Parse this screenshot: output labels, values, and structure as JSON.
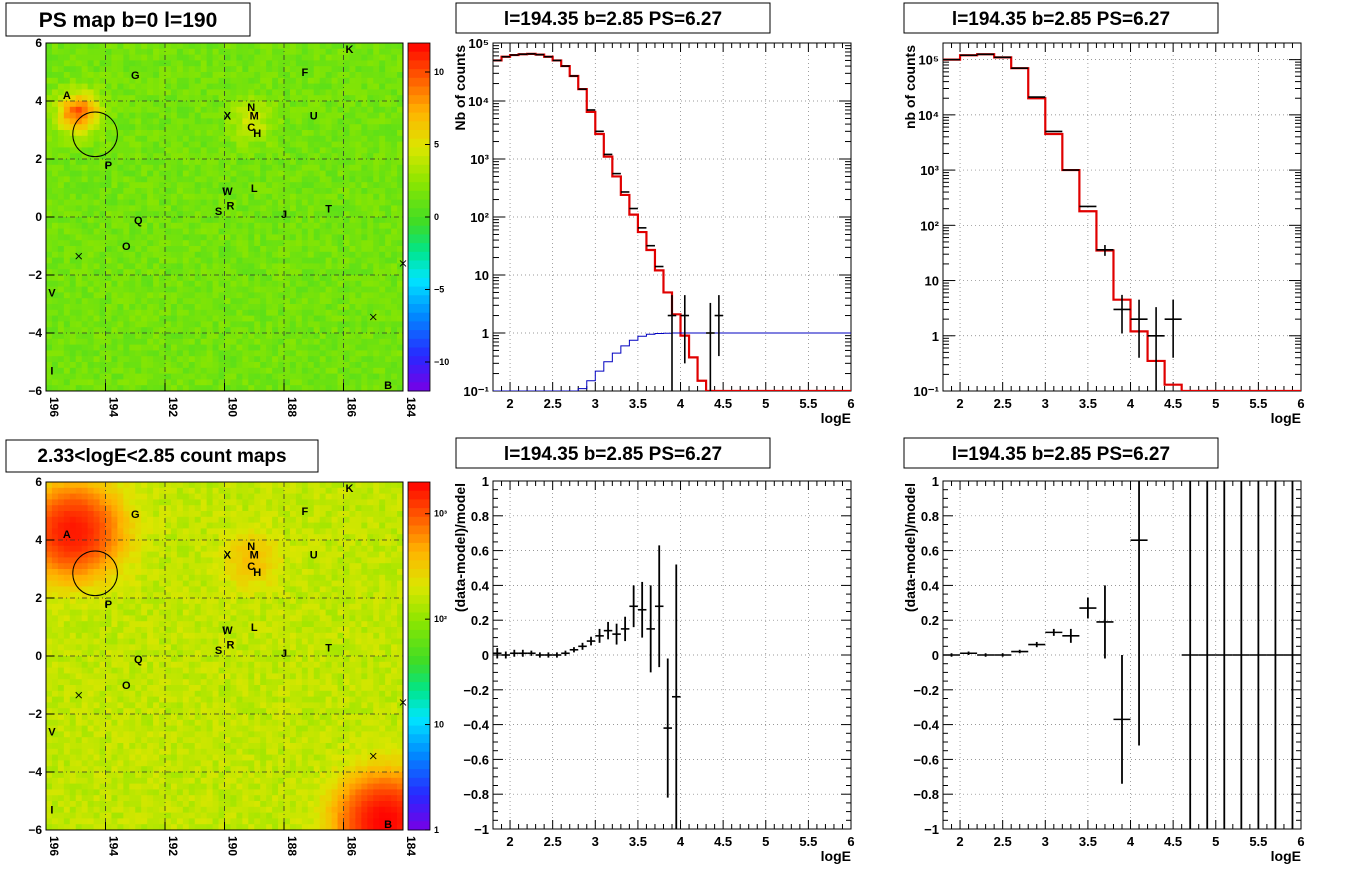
{
  "panels": {
    "map1": {
      "title": "PS map b=0 l=190",
      "xticks": [
        "196",
        "194",
        "192",
        "190",
        "188",
        "186",
        "184"
      ],
      "xticks_val": [
        196,
        194,
        192,
        190,
        188,
        186,
        184
      ],
      "yticks": [
        "−6",
        "−4",
        "−2",
        "0",
        "2",
        "4",
        "6"
      ],
      "yticks_val": [
        -6,
        -4,
        -2,
        0,
        2,
        4,
        6
      ],
      "xlim": [
        196,
        184
      ],
      "ylim": [
        -6,
        6
      ],
      "colorbar": {
        "scale": "linear",
        "range": [
          -12,
          12
        ],
        "ticks": [
          "−10",
          "−5",
          "0",
          "5",
          "10"
        ],
        "ticks_val": [
          -10,
          -5,
          0,
          5,
          10
        ]
      },
      "hotspots": [
        {
          "l": 194.9,
          "b": 3.6,
          "amp": 8
        },
        {
          "l": 189.1,
          "b": 3.3,
          "amp": 3
        }
      ],
      "background_value": 1.5
    },
    "map2": {
      "title": "2.33<logE<2.85 count maps",
      "xticks": [
        "196",
        "194",
        "192",
        "190",
        "188",
        "186",
        "184"
      ],
      "xticks_val": [
        196,
        194,
        192,
        190,
        188,
        186,
        184
      ],
      "yticks": [
        "−6",
        "−4",
        "−2",
        "0",
        "2",
        "4",
        "6"
      ],
      "yticks_val": [
        -6,
        -4,
        -2,
        0,
        2,
        4,
        6
      ],
      "xlim": [
        196,
        184
      ],
      "ylim": [
        -6,
        6
      ],
      "colorbar": {
        "scale": "log",
        "range": [
          1,
          2000
        ],
        "ticks": [
          "1",
          "10",
          "10²",
          "10³"
        ],
        "ticks_val": [
          1,
          10,
          100,
          1000
        ]
      },
      "background_value": 150,
      "hotspots": [
        {
          "l": 195.1,
          "b": 4.3,
          "amp": 1500,
          "width": 0.9
        },
        {
          "l": 184.6,
          "b": -5.7,
          "amp": 1800,
          "width": 0.9
        },
        {
          "l": 189.1,
          "b": 3.3,
          "amp": 220,
          "width": 0.6
        }
      ]
    },
    "spec1": {
      "title": "l=194.35 b=2.85 PS=6.27",
      "ylabel": "Nb of counts",
      "xlabel": "logE"
    },
    "spec2": {
      "title": "l=194.35 b=2.85 PS=6.27",
      "ylabel": "nb of counts",
      "xlabel": "logE"
    },
    "res1": {
      "title": "l=194.35 b=2.85 PS=6.27",
      "ylabel": "(data-model)/model",
      "xlabel": "logE"
    },
    "res2": {
      "title": "l=194.35 b=2.85 PS=6.27",
      "ylabel": "(data-model)/model",
      "xlabel": "logE"
    }
  },
  "sources": [
    {
      "name": "A",
      "l": 195.3,
      "b": 4.2
    },
    {
      "name": "G",
      "l": 193.0,
      "b": 4.9
    },
    {
      "name": "F",
      "l": 187.3,
      "b": 5.0
    },
    {
      "name": "K",
      "l": 185.8,
      "b": 5.8
    },
    {
      "name": "N",
      "l": 189.1,
      "b": 3.8
    },
    {
      "name": "X",
      "l": 189.9,
      "b": 3.5
    },
    {
      "name": "M",
      "l": 189.0,
      "b": 3.5
    },
    {
      "name": "C",
      "l": 189.1,
      "b": 3.1
    },
    {
      "name": "H",
      "l": 188.9,
      "b": 2.9
    },
    {
      "name": "U",
      "l": 187.0,
      "b": 3.5
    },
    {
      "name": "P",
      "l": 193.9,
      "b": 1.8
    },
    {
      "name": "W",
      "l": 189.9,
      "b": 0.9
    },
    {
      "name": "L",
      "l": 189.0,
      "b": 1.0
    },
    {
      "name": "R",
      "l": 189.8,
      "b": 0.4
    },
    {
      "name": "S",
      "l": 190.2,
      "b": 0.2
    },
    {
      "name": "J",
      "l": 188.0,
      "b": 0.1
    },
    {
      "name": "T",
      "l": 186.5,
      "b": 0.3
    },
    {
      "name": "Q",
      "l": 192.9,
      "b": -0.1
    },
    {
      "name": "O",
      "l": 193.3,
      "b": -1.0
    },
    {
      "name": "V",
      "l": 195.8,
      "b": -2.6
    },
    {
      "name": "I",
      "l": 195.8,
      "b": -5.3
    },
    {
      "name": "B",
      "l": 184.5,
      "b": -5.8
    }
  ],
  "crosses": [
    {
      "l": 194.9,
      "b": -1.35
    },
    {
      "l": 185.0,
      "b": -3.45
    },
    {
      "l": 184.0,
      "b": -1.6
    }
  ],
  "circle": {
    "l": 194.35,
    "b": 2.85,
    "r": 0.75
  },
  "chart_data": [
    {
      "type": "line",
      "panel": "spec1",
      "xlim": [
        1.8,
        6
      ],
      "ylim": [
        0.1,
        100000
      ],
      "yscale": "log",
      "xticks": [
        "2",
        "2.5",
        "3",
        "3.5",
        "4",
        "4.5",
        "5",
        "5.5",
        "6"
      ],
      "xticks_val": [
        2,
        2.5,
        3,
        3.5,
        4,
        4.5,
        5,
        5.5,
        6
      ],
      "yticks": [
        "10⁻¹",
        "1",
        "10",
        "10²",
        "10³",
        "10⁴",
        "10⁵"
      ],
      "yticks_val": [
        0.1,
        1,
        10,
        100,
        1000,
        10000,
        100000
      ],
      "bin_edges": [
        1.8,
        1.9,
        2.0,
        2.1,
        2.2,
        2.3,
        2.4,
        2.5,
        2.6,
        2.7,
        2.8,
        2.9,
        3.0,
        3.1,
        3.2,
        3.3,
        3.4,
        3.5,
        3.6,
        3.7,
        3.8,
        3.9,
        4.0,
        4.1,
        4.2,
        4.3,
        4.4,
        4.5,
        4.6,
        4.7,
        4.8,
        4.9,
        5.0,
        5.1,
        5.2,
        5.3,
        5.4,
        5.5,
        5.6,
        5.7,
        5.8,
        5.9,
        6.0
      ],
      "series": [
        {
          "values": [
            50000,
            58000,
            62000,
            64000,
            65000,
            63000,
            58000,
            50000,
            40000,
            27000,
            16000,
            6500,
            2700,
            1100,
            500,
            240,
            110,
            55,
            27,
            12,
            5,
            2.1,
            0.9,
            0.38,
            0.15,
            0.1,
            0.1,
            0.1,
            0.1,
            0.1,
            0.1,
            0.1,
            0.1,
            0.1,
            0.1,
            0.1,
            0.1,
            0.1,
            0.1,
            0.1,
            0.1,
            0.1
          ]
        },
        {
          "values": [
            0.1,
            0.1,
            0.1,
            0.1,
            0.1,
            0.1,
            0.1,
            0.1,
            0.1,
            0.1,
            0.11,
            0.15,
            0.22,
            0.32,
            0.45,
            0.6,
            0.75,
            0.88,
            0.95,
            0.98,
            0.99,
            1,
            1,
            1,
            1,
            1,
            1,
            1,
            1,
            1,
            1,
            1,
            1,
            1,
            1,
            1,
            1,
            1,
            1,
            1,
            1,
            1
          ]
        }
      ],
      "points": [
        {
          "x": 1.85,
          "y": 50000
        },
        {
          "x": 1.95,
          "y": 58000
        },
        {
          "x": 2.05,
          "y": 62000
        },
        {
          "x": 2.15,
          "y": 64000
        },
        {
          "x": 2.25,
          "y": 65000
        },
        {
          "x": 2.35,
          "y": 63000
        },
        {
          "x": 2.45,
          "y": 58000
        },
        {
          "x": 2.55,
          "y": 50000
        },
        {
          "x": 2.65,
          "y": 40000
        },
        {
          "x": 2.75,
          "y": 27000
        },
        {
          "x": 2.85,
          "y": 16000
        },
        {
          "x": 2.95,
          "y": 7000
        },
        {
          "x": 3.05,
          "y": 3000
        },
        {
          "x": 3.15,
          "y": 1200
        },
        {
          "x": 3.25,
          "y": 560
        },
        {
          "x": 3.35,
          "y": 270
        },
        {
          "x": 3.45,
          "y": 140
        },
        {
          "x": 3.55,
          "y": 65
        },
        {
          "x": 3.65,
          "y": 32
        },
        {
          "x": 3.75,
          "y": 14
        },
        {
          "x": 3.9,
          "y": 2,
          "ylo": 0.1,
          "yhi": 4.5
        },
        {
          "x": 4.05,
          "y": 2,
          "ylo": 0.3,
          "yhi": 4.5
        },
        {
          "x": 4.35,
          "y": 1,
          "ylo": 0.1,
          "yhi": 3.3
        },
        {
          "x": 4.45,
          "y": 2,
          "ylo": 0.4,
          "yhi": 4.5
        }
      ],
      "xlabel": "logE",
      "ylabel": "Nb of counts"
    },
    {
      "type": "line",
      "panel": "spec2",
      "xlim": [
        1.8,
        6
      ],
      "ylim": [
        0.1,
        200000
      ],
      "yscale": "log",
      "xticks": [
        "2",
        "2.5",
        "3",
        "3.5",
        "4",
        "4.5",
        "5",
        "5.5",
        "6"
      ],
      "xticks_val": [
        2,
        2.5,
        3,
        3.5,
        4,
        4.5,
        5,
        5.5,
        6
      ],
      "yticks": [
        "10⁻¹",
        "1",
        "10",
        "10²",
        "10³",
        "10⁴",
        "10⁵"
      ],
      "yticks_val": [
        0.1,
        1,
        10,
        100,
        1000,
        10000,
        100000
      ],
      "bin_edges": [
        1.8,
        2.0,
        2.2,
        2.4,
        2.6,
        2.8,
        3.0,
        3.2,
        3.4,
        3.6,
        3.8,
        4.0,
        4.2,
        4.4,
        4.6,
        4.8,
        5.0,
        5.2,
        5.4,
        5.6,
        5.8,
        6.0
      ],
      "series": [
        {
          "values": [
            100000,
            120000,
            125000,
            110000,
            70000,
            20000,
            4500,
            1000,
            180,
            35,
            4.5,
            1.2,
            0.35,
            0.13,
            0.1,
            0.1,
            0.1,
            0.1,
            0.1,
            0.1,
            0.1
          ]
        }
      ],
      "points": [
        {
          "x": 1.9,
          "y": 100000
        },
        {
          "x": 2.1,
          "y": 120000
        },
        {
          "x": 2.3,
          "y": 125000
        },
        {
          "x": 2.5,
          "y": 110000
        },
        {
          "x": 2.7,
          "y": 70000
        },
        {
          "x": 2.9,
          "y": 21000
        },
        {
          "x": 3.1,
          "y": 5000
        },
        {
          "x": 3.3,
          "y": 1000
        },
        {
          "x": 3.5,
          "y": 220
        },
        {
          "x": 3.7,
          "y": 36,
          "ylo": 28,
          "yhi": 44
        },
        {
          "x": 3.9,
          "y": 3,
          "ylo": 1.1,
          "yhi": 5.5
        },
        {
          "x": 4.1,
          "y": 2,
          "ylo": 0.4,
          "yhi": 4.5
        },
        {
          "x": 4.3,
          "y": 1,
          "ylo": 0.1,
          "yhi": 3.3
        },
        {
          "x": 4.5,
          "y": 2,
          "ylo": 0.4,
          "yhi": 4.5
        }
      ],
      "xlabel": "logE",
      "ylabel": "nb of counts"
    },
    {
      "type": "scatter",
      "panel": "res1",
      "xlim": [
        1.8,
        6
      ],
      "ylim": [
        -1,
        1
      ],
      "xticks": [
        "2",
        "2.5",
        "3",
        "3.5",
        "4",
        "4.5",
        "5",
        "5.5",
        "6"
      ],
      "xticks_val": [
        2,
        2.5,
        3,
        3.5,
        4,
        4.5,
        5,
        5.5,
        6
      ],
      "yticks": [
        "−1",
        "−0.8",
        "−0.6",
        "−0.4",
        "−0.2",
        "0",
        "0.2",
        "0.4",
        "0.6",
        "0.8",
        "1"
      ],
      "yticks_val": [
        -1,
        -0.8,
        -0.6,
        -0.4,
        -0.2,
        0,
        0.2,
        0.4,
        0.6,
        0.8,
        1
      ],
      "points": [
        {
          "x": 1.85,
          "y": 0.01,
          "e": 0.03
        },
        {
          "x": 1.95,
          "y": 0.0,
          "e": 0.02
        },
        {
          "x": 2.05,
          "y": 0.01,
          "e": 0.02
        },
        {
          "x": 2.15,
          "y": 0.01,
          "e": 0.02
        },
        {
          "x": 2.25,
          "y": 0.01,
          "e": 0.015
        },
        {
          "x": 2.35,
          "y": 0.0,
          "e": 0.015
        },
        {
          "x": 2.45,
          "y": 0.0,
          "e": 0.015
        },
        {
          "x": 2.55,
          "y": 0.0,
          "e": 0.015
        },
        {
          "x": 2.65,
          "y": 0.01,
          "e": 0.015
        },
        {
          "x": 2.75,
          "y": 0.03,
          "e": 0.015
        },
        {
          "x": 2.85,
          "y": 0.05,
          "e": 0.02
        },
        {
          "x": 2.95,
          "y": 0.08,
          "e": 0.025
        },
        {
          "x": 3.05,
          "y": 0.11,
          "e": 0.04
        },
        {
          "x": 3.15,
          "y": 0.14,
          "e": 0.05
        },
        {
          "x": 3.25,
          "y": 0.12,
          "e": 0.06
        },
        {
          "x": 3.35,
          "y": 0.15,
          "e": 0.07
        },
        {
          "x": 3.45,
          "y": 0.28,
          "e": 0.12
        },
        {
          "x": 3.55,
          "y": 0.26,
          "e": 0.16
        },
        {
          "x": 3.65,
          "y": 0.15,
          "e": 0.25
        },
        {
          "x": 3.75,
          "y": 0.28,
          "e": 0.35
        },
        {
          "x": 3.85,
          "y": -0.42,
          "e": 0.4
        },
        {
          "x": 3.95,
          "y": -0.24,
          "e": 0.76
        }
      ],
      "xlabel": "logE",
      "ylabel": "(data-model)/model"
    },
    {
      "type": "scatter",
      "panel": "res2",
      "xlim": [
        1.8,
        6
      ],
      "ylim": [
        -1,
        1
      ],
      "xticks": [
        "2",
        "2.5",
        "3",
        "3.5",
        "4",
        "4.5",
        "5",
        "5.5",
        "6"
      ],
      "xticks_val": [
        2,
        2.5,
        3,
        3.5,
        4,
        4.5,
        5,
        5.5,
        6
      ],
      "yticks": [
        "−1",
        "−0.8",
        "−0.6",
        "−0.4",
        "−0.2",
        "0",
        "0.2",
        "0.4",
        "0.6",
        "0.8",
        "1"
      ],
      "yticks_val": [
        -1,
        -0.8,
        -0.6,
        -0.4,
        -0.2,
        0,
        0.2,
        0.4,
        0.6,
        0.8,
        1
      ],
      "points": [
        {
          "x": 1.9,
          "y": 0.0,
          "e": 0.01
        },
        {
          "x": 2.1,
          "y": 0.01,
          "e": 0.01
        },
        {
          "x": 2.3,
          "y": 0.0,
          "e": 0.01
        },
        {
          "x": 2.5,
          "y": 0.0,
          "e": 0.01
        },
        {
          "x": 2.7,
          "y": 0.02,
          "e": 0.01
        },
        {
          "x": 2.9,
          "y": 0.06,
          "e": 0.015
        },
        {
          "x": 3.1,
          "y": 0.13,
          "e": 0.02
        },
        {
          "x": 3.3,
          "y": 0.11,
          "e": 0.04
        },
        {
          "x": 3.5,
          "y": 0.27,
          "e": 0.06
        },
        {
          "x": 3.7,
          "y": 0.19,
          "e": 0.21
        },
        {
          "x": 3.9,
          "y": -0.37,
          "e": 0.37
        },
        {
          "x": 4.1,
          "y": 0.66,
          "e": 1.18
        },
        {
          "x": 4.7,
          "y": 0,
          "e": 1.5
        },
        {
          "x": 4.9,
          "y": 0,
          "e": 1.5
        },
        {
          "x": 5.1,
          "y": 0,
          "e": 1.5
        },
        {
          "x": 5.3,
          "y": 0,
          "e": 1.5
        },
        {
          "x": 5.5,
          "y": 0,
          "e": 1.5
        },
        {
          "x": 5.7,
          "y": 0,
          "e": 1.5
        },
        {
          "x": 5.9,
          "y": 0,
          "e": 1.5
        }
      ],
      "xlabel": "logE",
      "ylabel": "(data-model)/model"
    }
  ],
  "colors": {
    "data": "#000000",
    "model": "#e00000",
    "psf": "#0000c0",
    "grid": "#555555"
  }
}
